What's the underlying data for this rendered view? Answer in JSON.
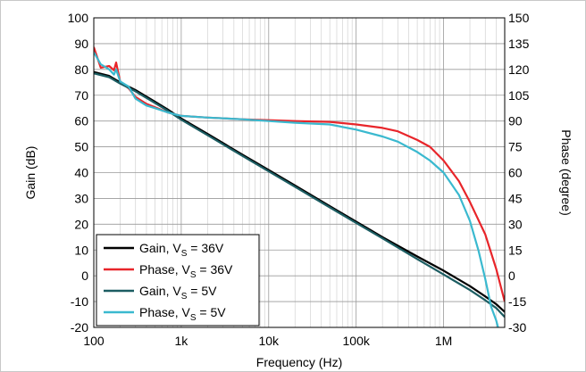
{
  "chart_data": {
    "type": "line",
    "title": "",
    "xlabel": "Frequency (Hz)",
    "ylabel_left": "Gain (dB)",
    "ylabel_right": "Phase (degree)",
    "x_scale": "log",
    "xlim": [
      100,
      5000000
    ],
    "ylim_left": [
      -20,
      100
    ],
    "ylim_right": [
      -30,
      150
    ],
    "x_ticks": [
      {
        "value": 100,
        "label": "100"
      },
      {
        "value": 1000,
        "label": "1k"
      },
      {
        "value": 10000,
        "label": "10k"
      },
      {
        "value": 100000,
        "label": "100k"
      },
      {
        "value": 1000000,
        "label": "1M"
      }
    ],
    "y_ticks_left": [
      100,
      90,
      80,
      70,
      60,
      50,
      40,
      30,
      20,
      10,
      0,
      -10,
      -20
    ],
    "y_ticks_right": [
      150,
      135,
      120,
      105,
      90,
      75,
      60,
      45,
      30,
      15,
      0,
      -15,
      -30
    ],
    "grid": true,
    "legend_position": "bottom-left",
    "series": [
      {
        "name": "Gain, V_S = 36V",
        "label_base": "Gain, V",
        "label_sub": "S",
        "label_tail": " = 36V",
        "axis": "left",
        "color": "#000000",
        "x": [
          100,
          150,
          200,
          300,
          500,
          700,
          1000,
          2000,
          5000,
          10000,
          20000,
          50000,
          100000,
          200000,
          500000,
          1000000,
          2000000,
          3000000,
          4000000,
          5000000
        ],
        "y": [
          79,
          77.5,
          75,
          72,
          67.5,
          64.5,
          61,
          55,
          47,
          41,
          35,
          27,
          21,
          15,
          7.5,
          2,
          -4,
          -8,
          -11,
          -14
        ]
      },
      {
        "name": "Phase, V_S = 36V",
        "label_base": "Phase, V",
        "label_sub": "S",
        "label_tail": " = 36V",
        "axis": "right",
        "color": "#e8252a",
        "x": [
          100,
          120,
          150,
          170,
          180,
          200,
          250,
          300,
          400,
          500,
          700,
          1000,
          2000,
          5000,
          10000,
          20000,
          50000,
          100000,
          200000,
          300000,
          500000,
          700000,
          1000000,
          1500000,
          2000000,
          3000000,
          4000000,
          5000000
        ],
        "y": [
          133,
          121,
          122,
          119.5,
          124,
          113,
          109,
          104,
          100,
          98,
          95,
          93,
          92,
          91,
          90.5,
          90,
          89.5,
          88,
          86,
          84,
          79,
          75,
          67,
          55,
          43,
          24,
          4,
          -15
        ]
      },
      {
        "name": "Gain, V_S = 5V",
        "label_base": "Gain, V",
        "label_sub": "S",
        "label_tail": " = 5V",
        "axis": "left",
        "color": "#1c5d62",
        "x": [
          100,
          150,
          200,
          300,
          500,
          700,
          1000,
          2000,
          5000,
          10000,
          20000,
          50000,
          100000,
          200000,
          500000,
          1000000,
          2000000,
          3000000,
          4000000,
          5000000
        ],
        "y": [
          78.5,
          77,
          74.5,
          71.5,
          67,
          64,
          60.5,
          54.5,
          46.5,
          40.5,
          34.5,
          26.5,
          20.5,
          14.5,
          6.5,
          0.5,
          -5.5,
          -9.5,
          -12.5,
          -16
        ]
      },
      {
        "name": "Phase, V_S = 5V",
        "label_base": "Phase, V",
        "label_sub": "S",
        "label_tail": " = 5V",
        "axis": "right",
        "color": "#3ab9cf",
        "x": [
          100,
          120,
          150,
          170,
          180,
          200,
          250,
          300,
          400,
          500,
          700,
          1000,
          2000,
          5000,
          10000,
          20000,
          50000,
          100000,
          200000,
          300000,
          500000,
          700000,
          1000000,
          1500000,
          2000000,
          2500000,
          3000000,
          3500000,
          4000000,
          4300000
        ],
        "y": [
          130,
          123,
          120,
          117,
          120,
          113,
          110,
          103,
          99,
          97.5,
          95,
          93,
          92,
          91,
          90,
          89,
          88,
          85,
          81,
          78,
          72,
          67,
          60,
          47,
          32,
          15,
          -2,
          -18,
          -26,
          -32
        ]
      }
    ]
  }
}
